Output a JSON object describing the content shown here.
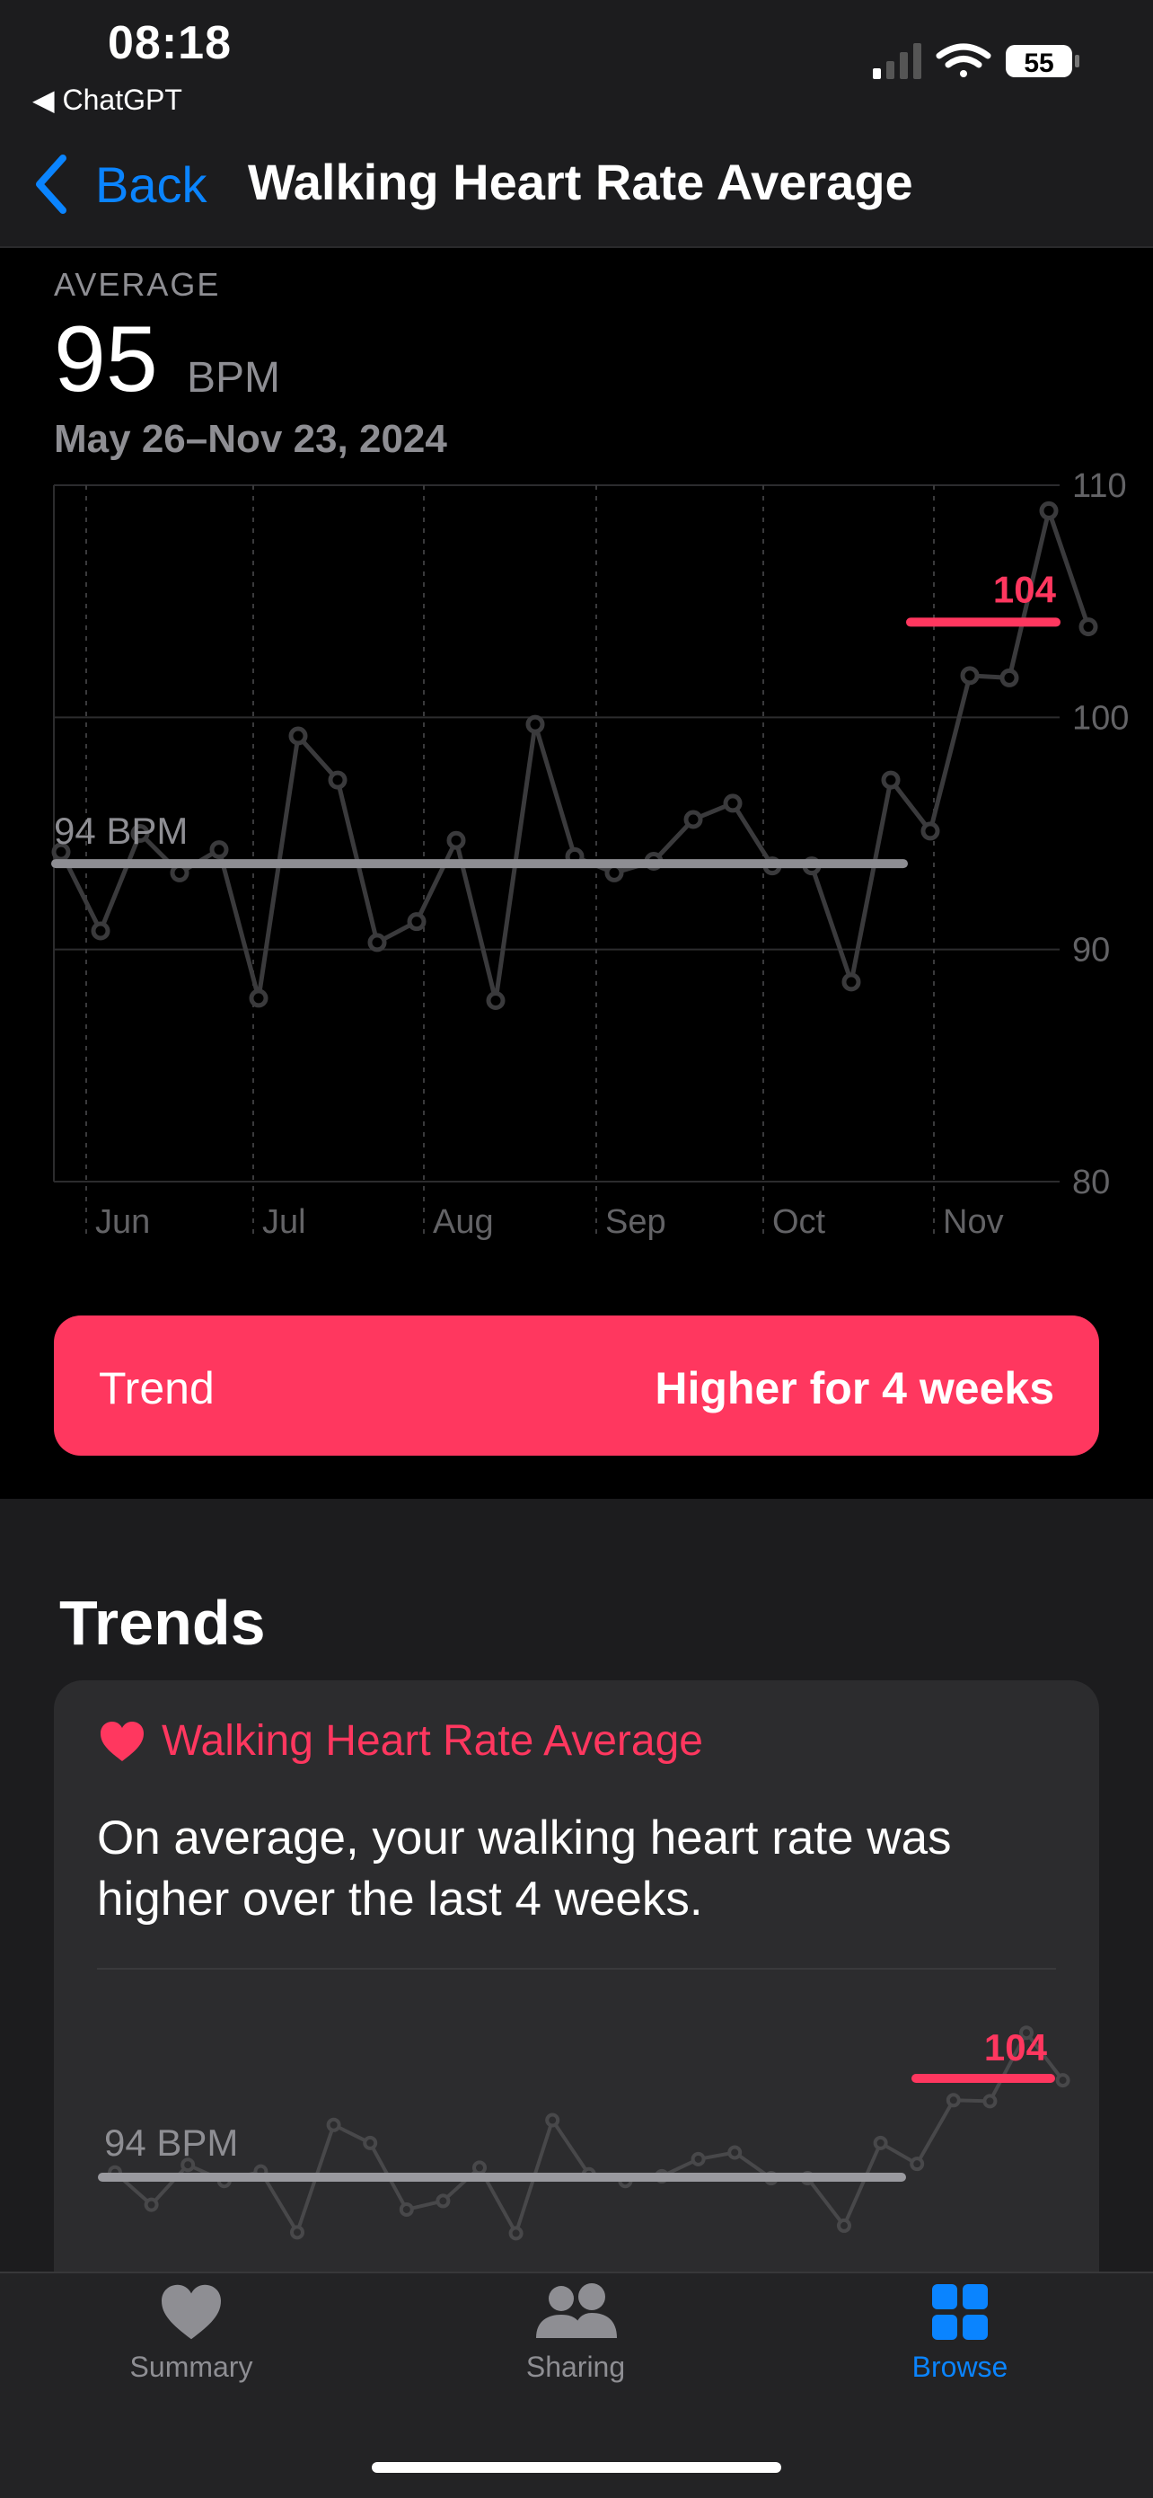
{
  "status": {
    "time": "08:18",
    "back_app": "◀ ChatGPT",
    "battery": "55"
  },
  "nav": {
    "back_label": "Back",
    "title": "Walking Heart Rate Average"
  },
  "summary": {
    "label": "AVERAGE",
    "value": "95",
    "unit": "BPM",
    "range": "May 26–Nov 23, 2024"
  },
  "trend_pill": {
    "label": "Trend",
    "value": "Higher for 4 weeks"
  },
  "trends_section": {
    "title": "Trends",
    "card_title": "Walking Heart Rate Average",
    "card_text": "On average, your walking heart rate was higher over the last 4 weeks."
  },
  "tabs": [
    {
      "label": "Summary",
      "icon": "heart-icon"
    },
    {
      "label": "Sharing",
      "icon": "people-icon"
    },
    {
      "label": "Browse",
      "icon": "grid-icon"
    }
  ],
  "colors": {
    "accent": "#ff375f",
    "link": "#0a84ff",
    "series": "#3a3a3c",
    "average_line": "#8e8e93"
  },
  "chart_data": {
    "type": "line",
    "ylim": [
      80,
      110
    ],
    "yticks": [
      80,
      90,
      100,
      110
    ],
    "xticks": [
      "Jun",
      "Jul",
      "Aug",
      "Sep",
      "Oct",
      "Nov"
    ],
    "grid": true,
    "series": [
      {
        "values": [
          94.2,
          90.8,
          95.0,
          93.3,
          94.3,
          87.9,
          99.2,
          97.3,
          90.3,
          91.2,
          94.7,
          87.8,
          99.7,
          94.0,
          93.3,
          93.8,
          95.6,
          96.3,
          93.6,
          93.6,
          88.6,
          97.3,
          95.1,
          101.8,
          101.7,
          108.9,
          103.9
        ]
      }
    ],
    "reference_lines": [
      {
        "label": "94 BPM",
        "value": 93.7,
        "span": "full"
      },
      {
        "label": "104",
        "value": 104.1,
        "span": "last 4 weeks"
      }
    ]
  }
}
